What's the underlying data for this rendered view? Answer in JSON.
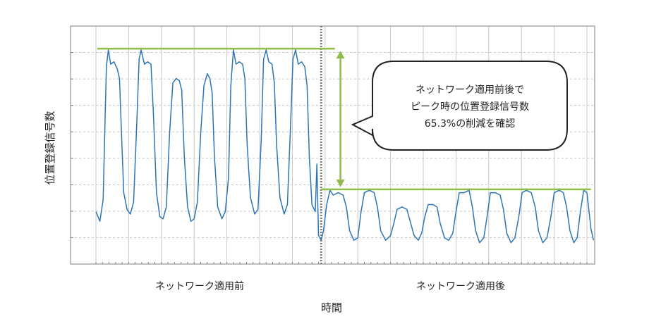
{
  "chart_data": {
    "type": "line",
    "ylabel": "位置登録信号数",
    "xlabel": "時間",
    "period_labels": [
      "ネットワーク適用前",
      "ネットワーク適用後"
    ],
    "annotation": [
      "ネットワーク適用前後で",
      "ピーク時の位置登録信号数",
      "65.3%の削減を確認"
    ],
    "grid": true,
    "ylim": [
      0,
      1
    ],
    "xlim": [
      0,
      15
    ],
    "peak_before": 0.905,
    "peak_after": 0.314,
    "colors": {
      "series": "#2e75b6",
      "reference_lines": "#8fbc4b",
      "divider": "#7f7f7f"
    },
    "series": [
      {
        "values": [
          [
            0.0,
            0.22
          ],
          [
            0.12,
            0.18
          ],
          [
            0.22,
            0.27
          ],
          [
            0.32,
            0.83
          ],
          [
            0.38,
            0.9
          ],
          [
            0.45,
            0.84
          ],
          [
            0.55,
            0.85
          ],
          [
            0.65,
            0.82
          ],
          [
            0.72,
            0.78
          ],
          [
            0.78,
            0.55
          ],
          [
            0.85,
            0.3
          ],
          [
            0.95,
            0.23
          ],
          [
            1.05,
            0.21
          ],
          [
            1.15,
            0.26
          ],
          [
            1.25,
            0.6
          ],
          [
            1.32,
            0.86
          ],
          [
            1.38,
            0.9
          ],
          [
            1.48,
            0.84
          ],
          [
            1.58,
            0.85
          ],
          [
            1.68,
            0.84
          ],
          [
            1.75,
            0.65
          ],
          [
            1.85,
            0.3
          ],
          [
            1.95,
            0.2
          ],
          [
            2.05,
            0.19
          ],
          [
            2.15,
            0.24
          ],
          [
            2.25,
            0.55
          ],
          [
            2.35,
            0.76
          ],
          [
            2.45,
            0.78
          ],
          [
            2.55,
            0.77
          ],
          [
            2.62,
            0.73
          ],
          [
            2.7,
            0.45
          ],
          [
            2.8,
            0.24
          ],
          [
            2.9,
            0.18
          ],
          [
            3.0,
            0.19
          ],
          [
            3.1,
            0.26
          ],
          [
            3.2,
            0.55
          ],
          [
            3.3,
            0.75
          ],
          [
            3.4,
            0.8
          ],
          [
            3.48,
            0.78
          ],
          [
            3.55,
            0.72
          ],
          [
            3.62,
            0.45
          ],
          [
            3.72,
            0.24
          ],
          [
            3.85,
            0.19
          ],
          [
            3.95,
            0.22
          ],
          [
            4.05,
            0.36
          ],
          [
            4.12,
            0.75
          ],
          [
            4.2,
            0.9
          ],
          [
            4.28,
            0.84
          ],
          [
            4.38,
            0.85
          ],
          [
            4.48,
            0.84
          ],
          [
            4.55,
            0.78
          ],
          [
            4.62,
            0.5
          ],
          [
            4.72,
            0.28
          ],
          [
            4.85,
            0.21
          ],
          [
            4.95,
            0.23
          ],
          [
            5.05,
            0.52
          ],
          [
            5.12,
            0.86
          ],
          [
            5.2,
            0.9
          ],
          [
            5.28,
            0.85
          ],
          [
            5.38,
            0.84
          ],
          [
            5.45,
            0.76
          ],
          [
            5.52,
            0.5
          ],
          [
            5.62,
            0.28
          ],
          [
            5.75,
            0.21
          ],
          [
            5.85,
            0.25
          ],
          [
            5.95,
            0.6
          ],
          [
            6.02,
            0.86
          ],
          [
            6.1,
            0.9
          ],
          [
            6.18,
            0.84
          ],
          [
            6.28,
            0.85
          ],
          [
            6.38,
            0.83
          ],
          [
            6.45,
            0.75
          ],
          [
            6.52,
            0.45
          ],
          [
            6.6,
            0.25
          ],
          [
            6.7,
            0.22
          ],
          [
            6.75,
            0.42
          ],
          [
            6.8,
            0.12
          ],
          [
            6.88,
            0.1
          ]
        ]
      },
      {
        "values": [
          [
            6.88,
            0.1
          ],
          [
            6.95,
            0.14
          ],
          [
            7.05,
            0.25
          ],
          [
            7.15,
            0.31
          ],
          [
            7.25,
            0.29
          ],
          [
            7.4,
            0.3
          ],
          [
            7.55,
            0.29
          ],
          [
            7.65,
            0.24
          ],
          [
            7.75,
            0.14
          ],
          [
            7.88,
            0.1
          ],
          [
            8.0,
            0.11
          ],
          [
            8.1,
            0.22
          ],
          [
            8.2,
            0.3
          ],
          [
            8.35,
            0.31
          ],
          [
            8.5,
            0.3
          ],
          [
            8.6,
            0.24
          ],
          [
            8.7,
            0.14
          ],
          [
            8.85,
            0.1
          ],
          [
            9.0,
            0.12
          ],
          [
            9.1,
            0.17
          ],
          [
            9.2,
            0.23
          ],
          [
            9.35,
            0.24
          ],
          [
            9.5,
            0.23
          ],
          [
            9.6,
            0.18
          ],
          [
            9.72,
            0.12
          ],
          [
            9.85,
            0.1
          ],
          [
            9.95,
            0.13
          ],
          [
            10.05,
            0.2
          ],
          [
            10.15,
            0.25
          ],
          [
            10.3,
            0.25
          ],
          [
            10.42,
            0.24
          ],
          [
            10.52,
            0.17
          ],
          [
            10.65,
            0.11
          ],
          [
            10.78,
            0.1
          ],
          [
            10.9,
            0.13
          ],
          [
            11.0,
            0.22
          ],
          [
            11.1,
            0.3
          ],
          [
            11.25,
            0.3
          ],
          [
            11.4,
            0.31
          ],
          [
            11.5,
            0.24
          ],
          [
            11.6,
            0.14
          ],
          [
            11.72,
            0.09
          ],
          [
            11.85,
            0.11
          ],
          [
            11.95,
            0.2
          ],
          [
            12.05,
            0.3
          ],
          [
            12.2,
            0.3
          ],
          [
            12.35,
            0.29
          ],
          [
            12.45,
            0.23
          ],
          [
            12.55,
            0.13
          ],
          [
            12.68,
            0.09
          ],
          [
            12.8,
            0.11
          ],
          [
            12.92,
            0.2
          ],
          [
            13.02,
            0.3
          ],
          [
            13.15,
            0.31
          ],
          [
            13.3,
            0.3
          ],
          [
            13.42,
            0.24
          ],
          [
            13.52,
            0.14
          ],
          [
            13.65,
            0.09
          ],
          [
            13.78,
            0.11
          ],
          [
            13.9,
            0.2
          ],
          [
            14.0,
            0.3
          ],
          [
            14.15,
            0.31
          ],
          [
            14.28,
            0.3
          ],
          [
            14.38,
            0.24
          ],
          [
            14.48,
            0.14
          ],
          [
            14.6,
            0.09
          ],
          [
            14.7,
            0.11
          ],
          [
            14.8,
            0.22
          ],
          [
            14.9,
            0.31
          ],
          [
            15.0,
            0.3
          ],
          [
            15.05,
            0.24
          ],
          [
            15.12,
            0.15
          ],
          [
            15.2,
            0.1
          ]
        ]
      }
    ]
  }
}
